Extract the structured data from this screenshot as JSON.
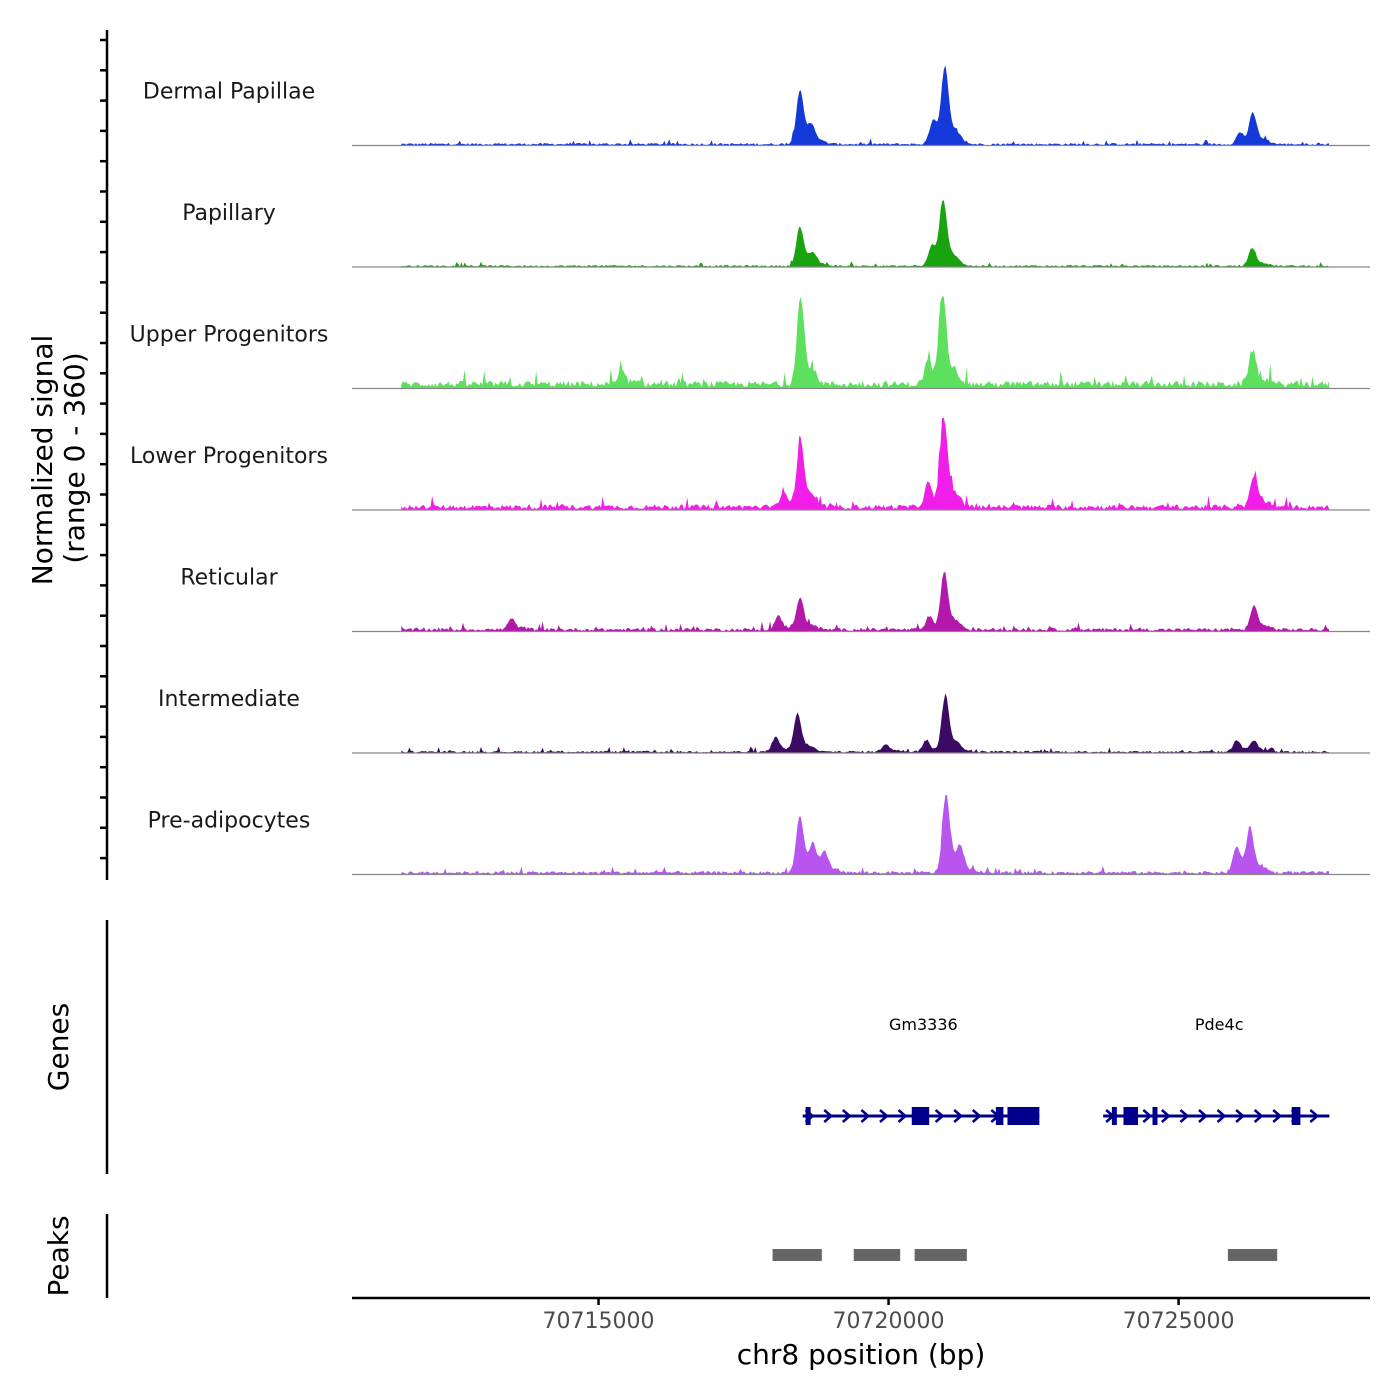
{
  "chart_data": {
    "type": "area",
    "title": "",
    "xlabel": "chr8 position (bp)",
    "ylabel_line1": "Normalized signal",
    "ylabel_line2": "(range 0 - 360)",
    "yrange": [
      0,
      360
    ],
    "xlim": [
      70710750,
      70728300
    ],
    "xticks": [
      70715000,
      70720000,
      70725000
    ],
    "xtick_labels": [
      "70715000",
      "70720000",
      "70725000"
    ],
    "tracks": [
      {
        "name": "Dermal Papillae",
        "color": "#1339d9",
        "peaks": [
          {
            "x": 70718470,
            "h": 205
          },
          {
            "x": 70719620,
            "h": 0
          },
          {
            "x": 70720970,
            "h": 282
          },
          {
            "x": 70720770,
            "h": 95
          },
          {
            "x": 70726280,
            "h": 112
          },
          {
            "x": 70726060,
            "h": 45
          },
          {
            "x": 70718670,
            "h": 45
          }
        ],
        "noise": 10
      },
      {
        "name": "Papillary",
        "color": "#18a30f",
        "peaks": [
          {
            "x": 70718470,
            "h": 150
          },
          {
            "x": 70720940,
            "h": 240
          },
          {
            "x": 70720750,
            "h": 80
          },
          {
            "x": 70726270,
            "h": 70
          },
          {
            "x": 70718700,
            "h": 30
          }
        ],
        "noise": 8
      },
      {
        "name": "Upper Progenitors",
        "color": "#5de05d",
        "peaks": [
          {
            "x": 70718480,
            "h": 330
          },
          {
            "x": 70720930,
            "h": 360
          },
          {
            "x": 70720680,
            "h": 90
          },
          {
            "x": 70726270,
            "h": 130
          },
          {
            "x": 70715400,
            "h": 45
          }
        ],
        "noise": 30
      },
      {
        "name": "Lower Progenitors",
        "color": "#f01ee8",
        "peaks": [
          {
            "x": 70718480,
            "h": 250
          },
          {
            "x": 70720950,
            "h": 340
          },
          {
            "x": 70720680,
            "h": 90
          },
          {
            "x": 70726300,
            "h": 120
          },
          {
            "x": 70718200,
            "h": 60
          }
        ],
        "noise": 22
      },
      {
        "name": "Reticular",
        "color": "#b318aa",
        "peaks": [
          {
            "x": 70718470,
            "h": 120
          },
          {
            "x": 70720960,
            "h": 215
          },
          {
            "x": 70720700,
            "h": 50
          },
          {
            "x": 70726300,
            "h": 90
          },
          {
            "x": 70718100,
            "h": 50
          },
          {
            "x": 70713500,
            "h": 40
          }
        ],
        "noise": 14
      },
      {
        "name": "Intermediate",
        "color": "#3d0a63",
        "peaks": [
          {
            "x": 70718430,
            "h": 145
          },
          {
            "x": 70720980,
            "h": 215
          },
          {
            "x": 70720650,
            "h": 45
          },
          {
            "x": 70718050,
            "h": 55
          },
          {
            "x": 70726000,
            "h": 45
          },
          {
            "x": 70726300,
            "h": 40
          },
          {
            "x": 70719950,
            "h": 30
          }
        ],
        "noise": 9
      },
      {
        "name": "Pre-adipocytes",
        "color": "#b855ef",
        "peaks": [
          {
            "x": 70718470,
            "h": 215
          },
          {
            "x": 70720990,
            "h": 300
          },
          {
            "x": 70718700,
            "h": 80
          },
          {
            "x": 70718900,
            "h": 65
          },
          {
            "x": 70726230,
            "h": 155
          },
          {
            "x": 70726000,
            "h": 100
          },
          {
            "x": 70721250,
            "h": 60
          }
        ],
        "noise": 14
      }
    ],
    "genes": [
      {
        "name": "Gm3336",
        "strand": "+",
        "start": 70718520,
        "end": 70722600,
        "label_x": 70720600,
        "exons": [
          [
            70718570,
            70718640
          ],
          [
            70720400,
            70720700
          ],
          [
            70721850,
            70721980
          ],
          [
            70722050,
            70722600
          ]
        ]
      },
      {
        "name": "Pde4c",
        "strand": "+",
        "start": 70723700,
        "end": 70727600,
        "label_x": 70725700,
        "exons": [
          [
            70723850,
            70723920
          ],
          [
            70724050,
            70724300
          ],
          [
            70724550,
            70724600
          ],
          [
            70726950,
            70727100
          ]
        ]
      }
    ],
    "peaks_track": [
      [
        70718000,
        70718850
      ],
      [
        70719400,
        70720200
      ],
      [
        70720450,
        70721350
      ],
      [
        70725850,
        70726700
      ]
    ],
    "panel_labels": {
      "genes": "Genes",
      "peaks": "Peaks"
    }
  }
}
